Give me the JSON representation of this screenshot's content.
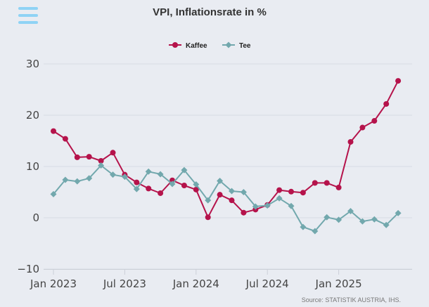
{
  "menu_icon": "hamburger-menu-icon",
  "credits": "Source: STATISTIK AUSTRIA, IHS.",
  "colors": {
    "background": "#e9ecf2",
    "kaffee": "#b5134b",
    "tee": "#72a8ad",
    "grid": "#d8dce4",
    "menu": "#8fd3f5"
  },
  "chart_data": {
    "type": "line",
    "title": "VPI, Inflationsrate in %",
    "xlabel": "",
    "ylabel": "",
    "ylim": [
      -10,
      30
    ],
    "yticks": [
      "30",
      "20",
      "10",
      "0",
      "−10"
    ],
    "xticks": [
      "Jan 2023",
      "Jul 2023",
      "Jan 2024",
      "Jul 2024",
      "Jan 2025"
    ],
    "grid": true,
    "legend_position": "top-center",
    "x": [
      "2023-01",
      "2023-02",
      "2023-03",
      "2023-04",
      "2023-05",
      "2023-06",
      "2023-07",
      "2023-08",
      "2023-09",
      "2023-10",
      "2023-11",
      "2023-12",
      "2024-01",
      "2024-02",
      "2024-03",
      "2024-04",
      "2024-05",
      "2024-06",
      "2024-07",
      "2024-08",
      "2024-09",
      "2024-10",
      "2024-11",
      "2024-12",
      "2025-01",
      "2025-02",
      "2025-03",
      "2025-04",
      "2025-05",
      "2025-06"
    ],
    "series": [
      {
        "name": "Kaffee",
        "marker": "circle",
        "values": [
          16.9,
          15.4,
          11.8,
          11.9,
          11.1,
          12.7,
          8.4,
          6.9,
          5.7,
          4.8,
          7.3,
          6.3,
          5.5,
          0.1,
          4.5,
          3.4,
          1.0,
          1.6,
          2.5,
          5.4,
          5.1,
          4.9,
          6.8,
          6.8,
          5.9,
          14.8,
          17.6,
          18.9,
          22.2,
          26.7
        ]
      },
      {
        "name": "Tee",
        "marker": "diamond",
        "values": [
          4.6,
          7.4,
          7.1,
          7.7,
          10.2,
          8.4,
          8.0,
          5.6,
          9.0,
          8.5,
          6.6,
          9.3,
          6.5,
          3.4,
          7.2,
          5.2,
          5.0,
          2.2,
          2.4,
          3.8,
          2.3,
          -1.8,
          -2.6,
          0.1,
          -0.4,
          1.3,
          -0.7,
          -0.3,
          -1.4,
          0.9
        ]
      }
    ]
  }
}
